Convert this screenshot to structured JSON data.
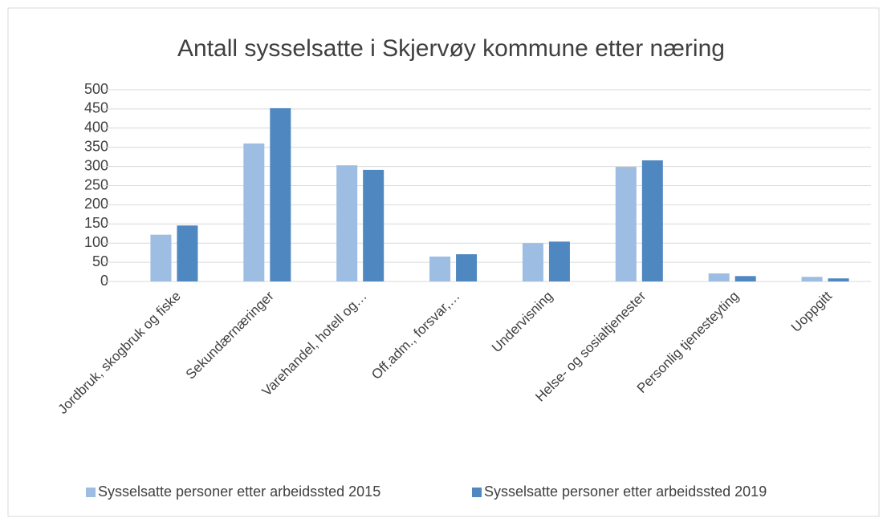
{
  "chart_data": {
    "type": "bar",
    "title": "Antall sysselsatte i Skjervøy kommune etter næring",
    "categories": [
      "Jordbruk, skogbruk og fiske",
      "Sekundærnæringer",
      "Varehandel, hotell og…",
      "Off.adm., forsvar,…",
      "Undervisning",
      "Helse- og sosialtjenester",
      "Personlig tjenesteyting",
      "Uoppgitt"
    ],
    "series": [
      {
        "name": "Sysselsatte personer etter arbeidssted 2015",
        "color": "#9dbde3",
        "values": [
          122,
          360,
          303,
          65,
          100,
          299,
          21,
          12
        ]
      },
      {
        "name": "Sysselsatte personer etter arbeidssted 2019",
        "color": "#4f87c0",
        "values": [
          146,
          452,
          291,
          71,
          104,
          316,
          14,
          8
        ]
      }
    ],
    "ylim": [
      0,
      500
    ],
    "yticks": [
      0,
      50,
      100,
      150,
      200,
      250,
      300,
      350,
      400,
      450,
      500
    ],
    "grid": true,
    "legend": "bottom"
  }
}
